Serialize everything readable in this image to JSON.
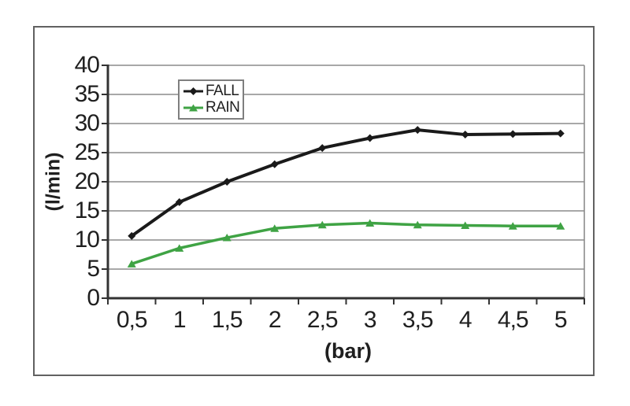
{
  "figure": {
    "background": "#ffffff",
    "frame_color": "#616161"
  },
  "chart_data": {
    "type": "line",
    "categories": [
      "0,5",
      "1",
      "1,5",
      "2",
      "2,5",
      "3",
      "3,5",
      "4",
      "4,5",
      "5"
    ],
    "series": [
      {
        "name": "FALL",
        "color": "#1a1a1a",
        "marker": "diamond",
        "values": [
          10.7,
          16.5,
          20.0,
          23.0,
          25.8,
          27.5,
          28.9,
          28.1,
          28.2,
          28.3
        ]
      },
      {
        "name": "RAIN",
        "color": "#3fa344",
        "marker": "triangle",
        "values": [
          5.9,
          8.6,
          10.4,
          12.0,
          12.6,
          12.9,
          12.6,
          12.5,
          12.4,
          12.4
        ]
      }
    ],
    "title": "",
    "xlabel": "(bar)",
    "ylabel": "(l/min)",
    "ylim": [
      0,
      40
    ],
    "ytick_step": 5,
    "yticks": [
      "0",
      "5",
      "10",
      "15",
      "20",
      "25",
      "30",
      "35",
      "40"
    ],
    "grid": true,
    "gridline_color": "#8c8c8c",
    "axis_color": "#333333",
    "legend_position": "top-left-inside",
    "legend_border_color": "#7f7f7f"
  }
}
